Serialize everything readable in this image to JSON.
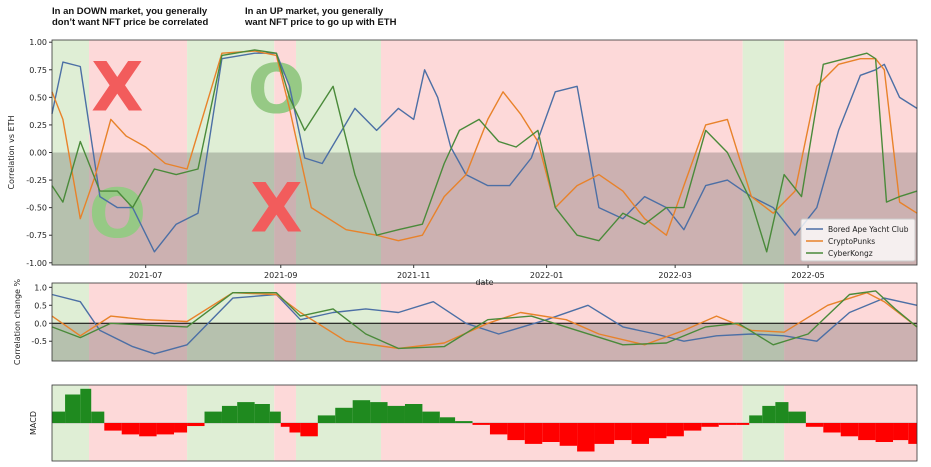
{
  "annotations": {
    "down_note_line1": "In an DOWN market, you generally",
    "down_note_line2": "don’t want NFT price be correlated",
    "up_note_line1": "In an UP market, you generally",
    "up_note_line2": "want NFT price to go up with ETH",
    "marks": [
      {
        "text": "X",
        "color": "#f25c5c",
        "panel": "correlation",
        "date": "2021-06-18",
        "value": 0.6
      },
      {
        "text": "O",
        "color": "#96c985",
        "panel": "correlation",
        "date": "2021-06-18",
        "value": -0.55
      },
      {
        "text": "O",
        "color": "#96c985",
        "panel": "correlation",
        "date": "2021-08-30",
        "value": 0.58
      },
      {
        "text": "X",
        "color": "#f25c5c",
        "panel": "correlation",
        "date": "2021-08-30",
        "value": -0.5
      }
    ]
  },
  "chart_data": [
    {
      "type": "line",
      "panel": "correlation",
      "ylabel": "Correlation vs ETH",
      "xlabel": "date",
      "ylim": [
        -1.02,
        1.02
      ],
      "yticks": [
        "1.00",
        "0.75",
        "0.50",
        "0.25",
        "0.00",
        "-0.25",
        "-0.50",
        "-0.75",
        "-1.00"
      ],
      "xticks": [
        "2021-07",
        "2021-09",
        "2021-11",
        "2022-01",
        "2022-03",
        "2022-05"
      ],
      "xlim": [
        "2021-05-19",
        "2022-06-20"
      ],
      "legend_placement": "lower-right",
      "shaded_below_zero": true,
      "regimes": [
        {
          "start": "2021-05-19",
          "end": "2021-06-05",
          "market": "up"
        },
        {
          "start": "2021-06-05",
          "end": "2021-07-20",
          "market": "down"
        },
        {
          "start": "2021-07-20",
          "end": "2021-08-29",
          "market": "up"
        },
        {
          "start": "2021-08-29",
          "end": "2021-09-08",
          "market": "down"
        },
        {
          "start": "2021-09-08",
          "end": "2021-10-17",
          "market": "up"
        },
        {
          "start": "2021-10-17",
          "end": "2022-04-01",
          "market": "down"
        },
        {
          "start": "2022-04-01",
          "end": "2022-04-20",
          "market": "up"
        },
        {
          "start": "2022-04-20",
          "end": "2022-06-20",
          "market": "down"
        }
      ],
      "regime_colors": {
        "up": "#dfeed5",
        "down": "#fdd9d9"
      },
      "series": [
        {
          "name": "Bored Ape Yacht Club",
          "color": "#4c6fa5",
          "x": [
            "2021-05-19",
            "2021-05-24",
            "2021-06-01",
            "2021-06-10",
            "2021-06-18",
            "2021-06-25",
            "2021-07-05",
            "2021-07-15",
            "2021-07-25",
            "2021-08-05",
            "2021-08-20",
            "2021-08-30",
            "2021-09-05",
            "2021-09-12",
            "2021-09-20",
            "2021-10-05",
            "2021-10-15",
            "2021-10-25",
            "2021-11-01",
            "2021-11-06",
            "2021-11-12",
            "2021-11-18",
            "2021-11-25",
            "2021-12-05",
            "2021-12-15",
            "2021-12-25",
            "2022-01-05",
            "2022-01-15",
            "2022-01-25",
            "2022-02-05",
            "2022-02-15",
            "2022-02-25",
            "2022-03-05",
            "2022-03-15",
            "2022-03-25",
            "2022-04-05",
            "2022-04-15",
            "2022-04-25",
            "2022-05-05",
            "2022-05-15",
            "2022-05-25",
            "2022-06-01",
            "2022-06-05",
            "2022-06-12",
            "2022-06-20"
          ],
          "y": [
            0.35,
            0.82,
            0.78,
            -0.4,
            -0.5,
            -0.5,
            -0.9,
            -0.65,
            -0.55,
            0.85,
            0.9,
            0.9,
            0.6,
            -0.05,
            -0.1,
            0.4,
            0.2,
            0.4,
            0.3,
            0.75,
            0.5,
            0.05,
            -0.2,
            -0.3,
            -0.3,
            -0.05,
            0.55,
            0.6,
            -0.5,
            -0.6,
            -0.4,
            -0.5,
            -0.7,
            -0.3,
            -0.25,
            -0.4,
            -0.5,
            -0.75,
            -0.5,
            0.2,
            0.7,
            0.75,
            0.8,
            0.5,
            0.4
          ]
        },
        {
          "name": "CryptoPunks",
          "color": "#e8822a",
          "x": [
            "2021-05-19",
            "2021-05-24",
            "2021-06-01",
            "2021-06-08",
            "2021-06-15",
            "2021-06-22",
            "2021-07-01",
            "2021-07-10",
            "2021-07-20",
            "2021-08-05",
            "2021-08-20",
            "2021-08-30",
            "2021-09-05",
            "2021-09-15",
            "2021-10-01",
            "2021-10-15",
            "2021-10-25",
            "2021-11-05",
            "2021-11-15",
            "2021-11-25",
            "2021-12-05",
            "2021-12-12",
            "2021-12-20",
            "2021-12-28",
            "2022-01-05",
            "2022-01-15",
            "2022-01-25",
            "2022-02-05",
            "2022-02-15",
            "2022-02-25",
            "2022-03-05",
            "2022-03-15",
            "2022-03-25",
            "2022-04-05",
            "2022-04-15",
            "2022-04-25",
            "2022-05-05",
            "2022-05-15",
            "2022-05-25",
            "2022-06-01",
            "2022-06-05",
            "2022-06-12",
            "2022-06-20"
          ],
          "y": [
            0.55,
            0.3,
            -0.6,
            -0.2,
            0.3,
            0.15,
            0.05,
            -0.1,
            -0.15,
            0.9,
            0.92,
            0.88,
            0.4,
            -0.5,
            -0.7,
            -0.75,
            -0.8,
            -0.75,
            -0.4,
            -0.2,
            0.3,
            0.55,
            0.35,
            0.1,
            -0.5,
            -0.3,
            -0.2,
            -0.35,
            -0.6,
            -0.75,
            -0.3,
            0.25,
            0.3,
            -0.4,
            -0.55,
            -0.35,
            0.6,
            0.8,
            0.85,
            0.85,
            0.75,
            -0.45,
            -0.55
          ]
        },
        {
          "name": "CyberKongz",
          "color": "#4a8a3a",
          "x": [
            "2021-05-19",
            "2021-05-24",
            "2021-06-01",
            "2021-06-10",
            "2021-06-18",
            "2021-06-25",
            "2021-07-05",
            "2021-07-15",
            "2021-07-25",
            "2021-08-05",
            "2021-08-20",
            "2021-08-30",
            "2021-09-05",
            "2021-09-12",
            "2021-09-25",
            "2021-10-05",
            "2021-10-15",
            "2021-10-25",
            "2021-11-05",
            "2021-11-15",
            "2021-11-22",
            "2021-12-01",
            "2021-12-10",
            "2021-12-18",
            "2021-12-28",
            "2022-01-05",
            "2022-01-15",
            "2022-01-25",
            "2022-02-05",
            "2022-02-15",
            "2022-02-25",
            "2022-03-05",
            "2022-03-15",
            "2022-03-25",
            "2022-04-05",
            "2022-04-12",
            "2022-04-20",
            "2022-04-28",
            "2022-05-08",
            "2022-05-18",
            "2022-05-28",
            "2022-06-01",
            "2022-06-06",
            "2022-06-12",
            "2022-06-20"
          ],
          "y": [
            -0.3,
            -0.45,
            0.1,
            -0.35,
            -0.35,
            -0.5,
            -0.15,
            -0.2,
            -0.15,
            0.88,
            0.93,
            0.9,
            0.5,
            0.2,
            0.6,
            -0.2,
            -0.75,
            -0.7,
            -0.65,
            -0.1,
            0.2,
            0.3,
            0.1,
            0.05,
            0.2,
            -0.5,
            -0.75,
            -0.8,
            -0.55,
            -0.65,
            -0.5,
            -0.5,
            0.2,
            0.0,
            -0.45,
            -0.9,
            -0.2,
            -0.4,
            0.8,
            0.85,
            0.9,
            0.85,
            -0.45,
            -0.4,
            -0.35
          ]
        }
      ]
    },
    {
      "type": "line",
      "panel": "correlation_change",
      "ylabel": "Correlation change %",
      "ylim": [
        -1.05,
        1.12
      ],
      "yticks": [
        "1.0",
        "0.5",
        "0.0",
        "-0.5"
      ],
      "horizontal_line_at": 0.0,
      "shaded_below_zero": true,
      "series": [
        {
          "name": "Bored Ape Yacht Club",
          "color": "#4c6fa5",
          "x": [
            "2021-05-19",
            "2021-06-01",
            "2021-06-10",
            "2021-06-25",
            "2021-07-05",
            "2021-07-20",
            "2021-08-10",
            "2021-08-30",
            "2021-09-10",
            "2021-09-25",
            "2021-10-10",
            "2021-10-25",
            "2021-11-10",
            "2021-11-25",
            "2021-12-10",
            "2022-01-01",
            "2022-01-20",
            "2022-02-05",
            "2022-02-20",
            "2022-03-05",
            "2022-03-20",
            "2022-04-05",
            "2022-04-20",
            "2022-05-05",
            "2022-05-20",
            "2022-06-05",
            "2022-06-20"
          ],
          "y": [
            0.8,
            0.6,
            -0.2,
            -0.65,
            -0.85,
            -0.6,
            0.7,
            0.8,
            0.1,
            0.3,
            0.4,
            0.3,
            0.6,
            0.0,
            -0.3,
            0.1,
            0.5,
            -0.1,
            -0.3,
            -0.5,
            -0.35,
            -0.3,
            -0.35,
            -0.5,
            0.3,
            0.7,
            0.5
          ]
        },
        {
          "name": "CryptoPunks",
          "color": "#e8822a",
          "x": [
            "2021-05-19",
            "2021-06-01",
            "2021-06-15",
            "2021-07-01",
            "2021-07-20",
            "2021-08-10",
            "2021-08-30",
            "2021-09-10",
            "2021-10-01",
            "2021-10-25",
            "2021-11-15",
            "2021-12-05",
            "2021-12-20",
            "2022-01-10",
            "2022-01-25",
            "2022-02-15",
            "2022-03-05",
            "2022-03-20",
            "2022-04-05",
            "2022-04-20",
            "2022-05-10",
            "2022-05-28",
            "2022-06-05",
            "2022-06-20"
          ],
          "y": [
            0.2,
            -0.35,
            0.2,
            0.1,
            0.05,
            0.85,
            0.8,
            0.3,
            -0.5,
            -0.7,
            -0.55,
            0.0,
            0.3,
            0.1,
            -0.3,
            -0.6,
            -0.2,
            0.2,
            -0.2,
            -0.25,
            0.5,
            0.85,
            0.6,
            -0.1
          ]
        },
        {
          "name": "CyberKongz",
          "color": "#4a8a3a",
          "x": [
            "2021-05-19",
            "2021-06-01",
            "2021-06-15",
            "2021-07-01",
            "2021-07-20",
            "2021-08-10",
            "2021-08-30",
            "2021-09-10",
            "2021-09-25",
            "2021-10-10",
            "2021-10-25",
            "2021-11-15",
            "2021-12-05",
            "2021-12-25",
            "2022-01-15",
            "2022-02-05",
            "2022-02-25",
            "2022-03-15",
            "2022-03-30",
            "2022-04-15",
            "2022-05-01",
            "2022-05-20",
            "2022-06-01",
            "2022-06-10",
            "2022-06-20"
          ],
          "y": [
            -0.1,
            -0.4,
            0.0,
            -0.05,
            -0.1,
            0.85,
            0.85,
            0.2,
            0.4,
            -0.3,
            -0.7,
            -0.65,
            0.1,
            0.2,
            -0.2,
            -0.6,
            -0.55,
            -0.1,
            0.0,
            -0.6,
            -0.3,
            0.8,
            0.9,
            0.4,
            -0.1
          ]
        }
      ]
    },
    {
      "type": "bar",
      "panel": "macd",
      "ylabel": "MACD",
      "ylim": [
        -1,
        1
      ],
      "positive_color": "#1f8a1f",
      "negative_color": "#ff0000",
      "x": [
        "2021-05-19",
        "2021-05-25",
        "2021-06-01",
        "2021-06-06",
        "2021-06-12",
        "2021-06-20",
        "2021-06-28",
        "2021-07-06",
        "2021-07-14",
        "2021-07-20",
        "2021-07-28",
        "2021-08-05",
        "2021-08-12",
        "2021-08-20",
        "2021-08-27",
        "2021-09-01",
        "2021-09-05",
        "2021-09-10",
        "2021-09-18",
        "2021-09-26",
        "2021-10-04",
        "2021-10-12",
        "2021-10-20",
        "2021-10-28",
        "2021-11-05",
        "2021-11-13",
        "2021-11-20",
        "2021-11-28",
        "2021-12-06",
        "2021-12-14",
        "2021-12-22",
        "2021-12-30",
        "2022-01-07",
        "2022-01-15",
        "2022-01-23",
        "2022-02-01",
        "2022-02-09",
        "2022-02-17",
        "2022-02-25",
        "2022-03-05",
        "2022-03-13",
        "2022-03-21",
        "2022-03-29",
        "2022-04-04",
        "2022-04-10",
        "2022-04-16",
        "2022-04-22",
        "2022-04-30",
        "2022-05-08",
        "2022-05-16",
        "2022-05-24",
        "2022-06-01",
        "2022-06-09",
        "2022-06-16",
        "2022-06-20"
      ],
      "values": [
        0.3,
        0.75,
        0.9,
        0.3,
        -0.2,
        -0.3,
        -0.35,
        -0.3,
        -0.25,
        -0.08,
        0.3,
        0.45,
        0.55,
        0.5,
        0.3,
        -0.1,
        -0.25,
        -0.35,
        0.2,
        0.4,
        0.6,
        0.55,
        0.45,
        0.5,
        0.3,
        0.15,
        0.05,
        -0.05,
        -0.3,
        -0.45,
        -0.55,
        -0.5,
        -0.6,
        -0.75,
        -0.55,
        -0.45,
        -0.55,
        -0.4,
        -0.35,
        -0.2,
        -0.1,
        -0.05,
        -0.05,
        0.2,
        0.45,
        0.55,
        0.3,
        -0.1,
        -0.25,
        -0.35,
        -0.45,
        -0.5,
        -0.45,
        -0.55,
        -0.4
      ]
    }
  ]
}
